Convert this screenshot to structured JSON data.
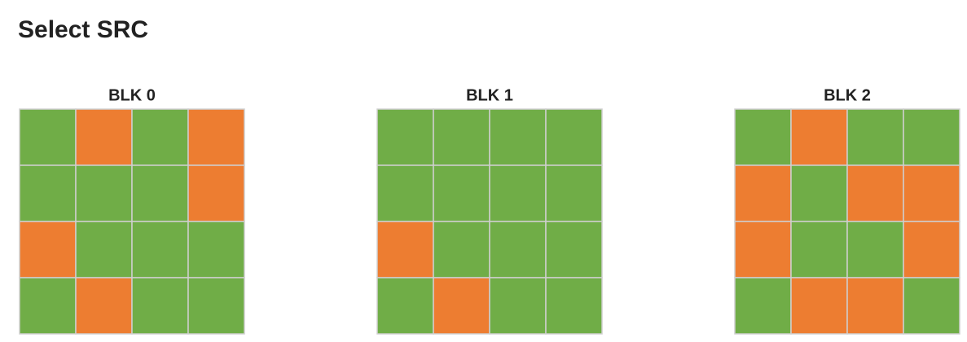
{
  "title": "Select SRC",
  "blocks": [
    {
      "label": "BLK 0",
      "cells": [
        [
          "#70ad47",
          "#ed7d31",
          "#70ad47",
          "#ed7d31"
        ],
        [
          "#70ad47",
          "#70ad47",
          "#70ad47",
          "#ed7d31"
        ],
        [
          "#ed7d31",
          "#70ad47",
          "#70ad47",
          "#70ad47"
        ],
        [
          "#70ad47",
          "#ed7d31",
          "#70ad47",
          "#70ad47"
        ]
      ]
    },
    {
      "label": "BLK 1",
      "cells": [
        [
          "#70ad47",
          "#70ad47",
          "#70ad47",
          "#70ad47"
        ],
        [
          "#70ad47",
          "#70ad47",
          "#70ad47",
          "#70ad47"
        ],
        [
          "#ed7d31",
          "#70ad47",
          "#70ad47",
          "#70ad47"
        ],
        [
          "#70ad47",
          "#ed7d31",
          "#70ad47",
          "#70ad47"
        ]
      ]
    },
    {
      "label": "BLK 2",
      "cells": [
        [
          "#70ad47",
          "#ed7d31",
          "#70ad47",
          "#70ad47"
        ],
        [
          "#ed7d31",
          "#70ad47",
          "#ed7d31",
          "#ed7d31"
        ],
        [
          "#ed7d31",
          "#70ad47",
          "#70ad47",
          "#ed7d31"
        ],
        [
          "#70ad47",
          "#ed7d31",
          "#ed7d31",
          "#70ad47"
        ]
      ]
    }
  ]
}
